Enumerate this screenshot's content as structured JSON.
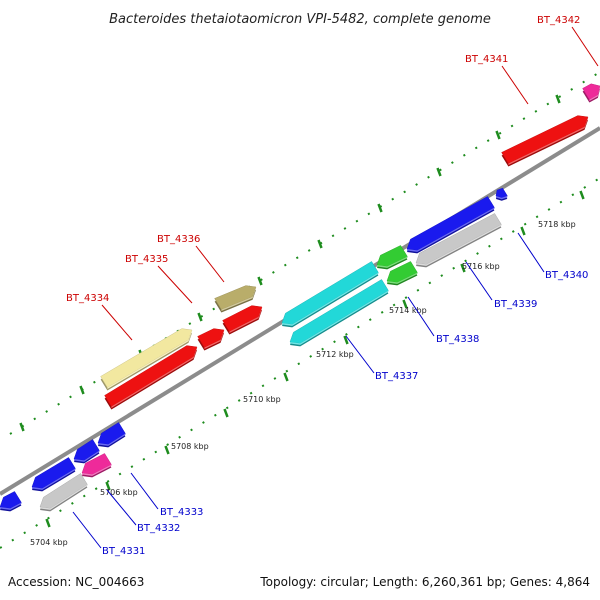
{
  "title": "Bacteroides thetaiotaomicron VPI-5482, complete genome",
  "footer": {
    "accession": "Accession: NC_004663",
    "summary": "Topology: circular; Length: 6,260,361 bp; Genes: 4,864"
  },
  "colors": {
    "forward_label": "#cc0000",
    "reverse_label": "#0000cc",
    "backbone": "#8c8c8c",
    "tick": "#1e8c1e"
  },
  "scale_labels": [
    "5704 kbp",
    "5706 kbp",
    "5708 kbp",
    "5710 kbp",
    "5712 kbp",
    "5714 kbp",
    "5716 kbp",
    "5718 kbp"
  ],
  "genes": [
    {
      "id": "BT_4334",
      "strand": "forward",
      "color": "#f2e8a0"
    },
    {
      "id": "BT_4335",
      "strand": "forward",
      "color": "#ee1111"
    },
    {
      "id": "BT_4336",
      "strand": "forward",
      "color": "#b9ad6a"
    },
    {
      "id": "BT_4341",
      "strand": "forward",
      "color": "#ee1111"
    },
    {
      "id": "BT_4342",
      "strand": "forward",
      "color": "#ee2a9a"
    },
    {
      "id": "BT_4331",
      "strand": "reverse",
      "color": "#1a1aee"
    },
    {
      "id": "BT_4332",
      "strand": "reverse",
      "color": "#ee2a9a"
    },
    {
      "id": "BT_4333",
      "strand": "reverse",
      "color": "#1a1aee"
    },
    {
      "id": "BT_4337",
      "strand": "reverse",
      "color": "#22d8d8"
    },
    {
      "id": "BT_4338",
      "strand": "reverse",
      "color": "#33cc33"
    },
    {
      "id": "BT_4339",
      "strand": "reverse",
      "color": "#c8c8c8"
    },
    {
      "id": "BT_4340",
      "strand": "reverse",
      "color": "#1a1aee"
    }
  ]
}
